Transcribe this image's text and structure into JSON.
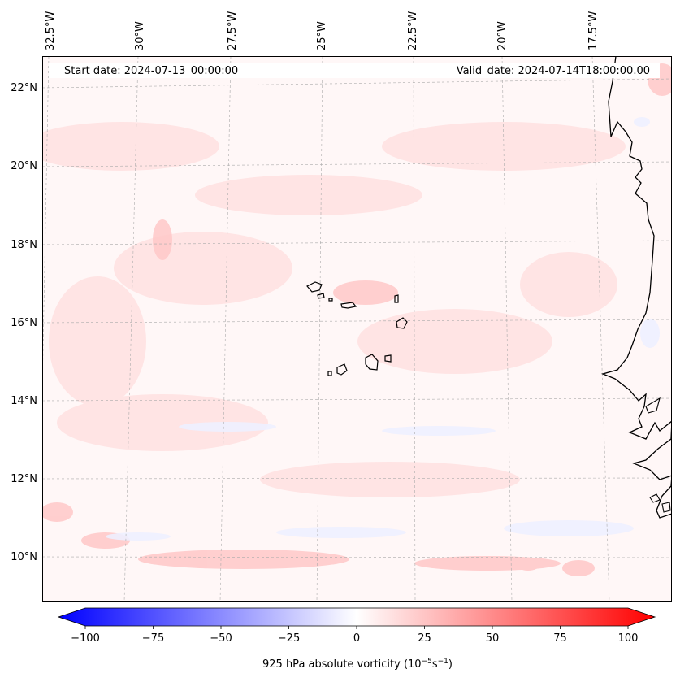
{
  "map": {
    "start_label": "Start date: 2024-07-13_00:00:00",
    "valid_label": "Valid_date: 2024-07-14T18:00:00.00",
    "lon_labels": [
      "32.5°W",
      "30°W",
      "27.5°W",
      "25°W",
      "22.5°W",
      "20°W",
      "17.5°W"
    ],
    "lat_labels": [
      "22°N",
      "20°N",
      "18°N",
      "16°N",
      "14°N",
      "12°N",
      "10°N"
    ]
  },
  "colorbar": {
    "ticks": [
      "−100",
      "−75",
      "−50",
      "−25",
      "0",
      "25",
      "50",
      "75",
      "100"
    ],
    "label": "925 hPa absolute vorticity (10",
    "label_exp1": "−5",
    "label_mid": "s",
    "label_exp2": "−1",
    "label_end": ")",
    "min": -100,
    "max": 100,
    "colors": {
      "neg": "#0000ff",
      "zero": "#ffffff",
      "pos": "#ff0000"
    }
  },
  "chart_data": {
    "type": "heatmap",
    "variable": "925 hPa absolute vorticity",
    "units": "10^-5 s^-1",
    "range": [
      -100,
      100
    ],
    "lon_range_deg": [
      -33,
      -15
    ],
    "lat_range_deg": [
      9,
      23
    ]
  }
}
